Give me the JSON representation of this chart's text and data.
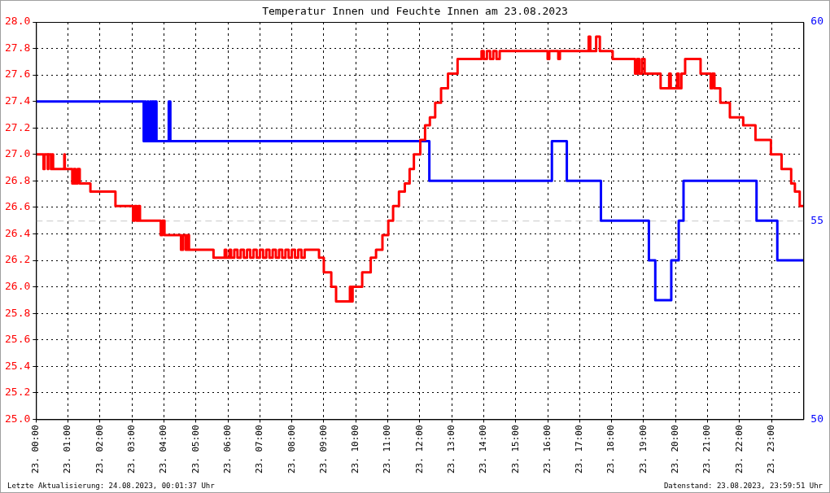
{
  "chart_data": {
    "type": "step",
    "title": "Temperatur Innen und Feuchte Innen am 23.08.2023",
    "annotations": [
      "Letzte Aktualisierung: 24.08.2023, 00:01:37 Uhr",
      "Datenstand: 23.08.2023, 23:59:51 Uhr"
    ],
    "xlim": [
      "2023-08-23T00:00",
      "2023-08-24T00:00"
    ],
    "xticks": [
      {
        "value": "2023-08-23T00:00",
        "label": "23. 00:00"
      },
      {
        "value": "2023-08-23T01:00",
        "label": "23. 01:00"
      },
      {
        "value": "2023-08-23T02:00",
        "label": "23. 02:00"
      },
      {
        "value": "2023-08-23T03:00",
        "label": "23. 03:00"
      },
      {
        "value": "2023-08-23T04:00",
        "label": "23. 04:00"
      },
      {
        "value": "2023-08-23T05:00",
        "label": "23. 05:00"
      },
      {
        "value": "2023-08-23T06:00",
        "label": "23. 06:00"
      },
      {
        "value": "2023-08-23T07:00",
        "label": "23. 07:00"
      },
      {
        "value": "2023-08-23T08:00",
        "label": "23. 08:00"
      },
      {
        "value": "2023-08-23T09:00",
        "label": "23. 09:00"
      },
      {
        "value": "2023-08-23T10:00",
        "label": "23. 10:00"
      },
      {
        "value": "2023-08-23T11:00",
        "label": "23. 11:00"
      },
      {
        "value": "2023-08-23T12:00",
        "label": "23. 12:00"
      },
      {
        "value": "2023-08-23T13:00",
        "label": "23. 13:00"
      },
      {
        "value": "2023-08-23T14:00",
        "label": "23. 14:00"
      },
      {
        "value": "2023-08-23T15:00",
        "label": "23. 15:00"
      },
      {
        "value": "2023-08-23T16:00",
        "label": "23. 16:00"
      },
      {
        "value": "2023-08-23T17:00",
        "label": "23. 17:00"
      },
      {
        "value": "2023-08-23T18:00",
        "label": "23. 18:00"
      },
      {
        "value": "2023-08-23T19:00",
        "label": "23. 19:00"
      },
      {
        "value": "2023-08-23T20:00",
        "label": "23. 20:00"
      },
      {
        "value": "2023-08-23T21:00",
        "label": "23. 21:00"
      },
      {
        "value": "2023-08-23T22:00",
        "label": "23. 22:00"
      },
      {
        "value": "2023-08-23T23:00",
        "label": "23. 23:00"
      }
    ],
    "ylim": [
      25,
      28
    ],
    "yticks": [
      {
        "value": 25,
        "label": "25.0"
      },
      {
        "value": 25.2,
        "label": "25.2"
      },
      {
        "value": 25.4,
        "label": "25.4"
      },
      {
        "value": 25.6,
        "label": "25.6"
      },
      {
        "value": 25.8,
        "label": "25.8"
      },
      {
        "value": 26,
        "label": "26.0"
      },
      {
        "value": 26.2,
        "label": "26.2"
      },
      {
        "value": 26.4,
        "label": "26.4"
      },
      {
        "value": 26.6,
        "label": "26.6"
      },
      {
        "value": 26.8,
        "label": "26.8"
      },
      {
        "value": 27,
        "label": "27.0"
      },
      {
        "value": 27.2,
        "label": "27.2"
      },
      {
        "value": 27.4,
        "label": "27.4"
      },
      {
        "value": 27.6,
        "label": "27.6"
      },
      {
        "value": 27.8,
        "label": "27.8"
      },
      {
        "value": 28,
        "label": "28.0"
      }
    ],
    "y2lim": [
      50,
      60
    ],
    "y2ticks": [
      50,
      55,
      60
    ],
    "ref_lines": [
      {
        "axis": "y2",
        "value": 55,
        "color": "#c8c8c8",
        "line_style": "dashed"
      }
    ],
    "grid": true,
    "legend": false,
    "marker": "none",
    "line_style": "solid",
    "series": [
      {
        "color": "#ff0000",
        "x": [
          "2023-08-23T00:00",
          "2023-08-23T00:14",
          "2023-08-23T00:16",
          "2023-08-23T00:22",
          "2023-08-23T00:23",
          "2023-08-23T00:28",
          "2023-08-23T00:30",
          "2023-08-23T00:32",
          "2023-08-23T00:53",
          "2023-08-23T00:54",
          "2023-08-23T01:08",
          "2023-08-23T01:11",
          "2023-08-23T01:14",
          "2023-08-23T01:18",
          "2023-08-23T01:22",
          "2023-08-23T01:42",
          "2023-08-23T02:29",
          "2023-08-23T03:02",
          "2023-08-23T03:05",
          "2023-08-23T03:09",
          "2023-08-23T03:12",
          "2023-08-23T03:15",
          "2023-08-23T03:54",
          "2023-08-23T03:57",
          "2023-08-23T04:01",
          "2023-08-23T04:32",
          "2023-08-23T04:36",
          "2023-08-23T04:41",
          "2023-08-23T04:44",
          "2023-08-23T04:47",
          "2023-08-23T05:33",
          "2023-08-23T05:54",
          "2023-08-23T05:57",
          "2023-08-23T06:03",
          "2023-08-23T06:06",
          "2023-08-23T06:12",
          "2023-08-23T06:18",
          "2023-08-23T06:24",
          "2023-08-23T06:30",
          "2023-08-23T06:36",
          "2023-08-23T06:42",
          "2023-08-23T06:48",
          "2023-08-23T06:54",
          "2023-08-23T07:00",
          "2023-08-23T07:06",
          "2023-08-23T07:12",
          "2023-08-23T07:18",
          "2023-08-23T07:24",
          "2023-08-23T07:30",
          "2023-08-23T07:36",
          "2023-08-23T07:42",
          "2023-08-23T07:48",
          "2023-08-23T07:54",
          "2023-08-23T08:00",
          "2023-08-23T08:06",
          "2023-08-23T08:12",
          "2023-08-23T08:18",
          "2023-08-23T08:24",
          "2023-08-23T08:51",
          "2023-08-23T09:00",
          "2023-08-23T09:14",
          "2023-08-23T09:23",
          "2023-08-23T09:49",
          "2023-08-23T09:52",
          "2023-08-23T09:54",
          "2023-08-23T10:12",
          "2023-08-23T10:28",
          "2023-08-23T10:38",
          "2023-08-23T10:50",
          "2023-08-23T11:01",
          "2023-08-23T11:10",
          "2023-08-23T11:21",
          "2023-08-23T11:32",
          "2023-08-23T11:41",
          "2023-08-23T11:49",
          "2023-08-23T12:01",
          "2023-08-23T12:10",
          "2023-08-23T12:19",
          "2023-08-23T12:29",
          "2023-08-23T12:40",
          "2023-08-23T12:53",
          "2023-08-23T13:11",
          "2023-08-23T13:56",
          "2023-08-23T14:00",
          "2023-08-23T14:06",
          "2023-08-23T14:12",
          "2023-08-23T14:18",
          "2023-08-23T14:24",
          "2023-08-23T14:30",
          "2023-08-23T16:00",
          "2023-08-23T16:03",
          "2023-08-23T16:20",
          "2023-08-23T16:23",
          "2023-08-23T17:17",
          "2023-08-23T17:20",
          "2023-08-23T17:31",
          "2023-08-23T17:38",
          "2023-08-23T18:02",
          "2023-08-23T18:44",
          "2023-08-23T18:48",
          "2023-08-23T18:52",
          "2023-08-23T18:57",
          "2023-08-23T19:02",
          "2023-08-23T19:32",
          "2023-08-23T19:48",
          "2023-08-23T19:51",
          "2023-08-23T20:03",
          "2023-08-23T20:06",
          "2023-08-23T20:11",
          "2023-08-23T20:18",
          "2023-08-23T20:47",
          "2023-08-23T21:06",
          "2023-08-23T21:09",
          "2023-08-23T21:13",
          "2023-08-23T21:24",
          "2023-08-23T21:42",
          "2023-08-23T22:07",
          "2023-08-23T22:30",
          "2023-08-23T22:59",
          "2023-08-23T23:19",
          "2023-08-23T23:37",
          "2023-08-23T23:44",
          "2023-08-23T23:53",
          "2023-08-24T00:00"
        ],
        "values": [
          27.0,
          26.89,
          27.0,
          26.89,
          27.0,
          26.89,
          27.0,
          26.89,
          27.0,
          26.89,
          26.78,
          26.89,
          26.78,
          26.89,
          26.78,
          26.72,
          26.61,
          26.5,
          26.61,
          26.5,
          26.61,
          26.5,
          26.39,
          26.5,
          26.39,
          26.28,
          26.39,
          26.28,
          26.39,
          26.28,
          26.22,
          26.28,
          26.22,
          26.28,
          26.22,
          26.28,
          26.22,
          26.28,
          26.22,
          26.28,
          26.22,
          26.28,
          26.22,
          26.28,
          26.22,
          26.28,
          26.22,
          26.28,
          26.22,
          26.28,
          26.22,
          26.28,
          26.22,
          26.28,
          26.22,
          26.28,
          26.22,
          26.28,
          26.22,
          26.11,
          26.0,
          25.89,
          26.0,
          25.89,
          26.0,
          26.11,
          26.22,
          26.28,
          26.39,
          26.5,
          26.61,
          26.72,
          26.78,
          26.89,
          27.0,
          27.11,
          27.22,
          27.28,
          27.39,
          27.5,
          27.61,
          27.72,
          27.78,
          27.72,
          27.78,
          27.72,
          27.78,
          27.72,
          27.78,
          27.72,
          27.78,
          27.72,
          27.78,
          27.89,
          27.78,
          27.89,
          27.78,
          27.72,
          27.61,
          27.72,
          27.61,
          27.72,
          27.61,
          27.5,
          27.61,
          27.5,
          27.61,
          27.5,
          27.61,
          27.72,
          27.61,
          27.5,
          27.61,
          27.5,
          27.39,
          27.28,
          27.22,
          27.11,
          27.0,
          26.89,
          26.78,
          26.72,
          26.61,
          26.61
        ]
      },
      {
        "color": "#0000ff",
        "axis": "y2",
        "x": [
          "2023-08-23T00:00",
          "2023-08-23T03:22",
          "2023-08-23T03:24",
          "2023-08-23T03:26",
          "2023-08-23T03:29",
          "2023-08-23T03:31",
          "2023-08-23T03:34",
          "2023-08-23T03:36",
          "2023-08-23T03:38",
          "2023-08-23T03:41",
          "2023-08-23T03:43",
          "2023-08-23T03:46",
          "2023-08-23T04:09",
          "2023-08-23T04:12",
          "2023-08-23T12:18",
          "2023-08-23T16:08",
          "2023-08-23T16:36",
          "2023-08-23T17:40",
          "2023-08-23T19:10",
          "2023-08-23T19:22",
          "2023-08-23T19:52",
          "2023-08-23T20:06",
          "2023-08-23T20:15",
          "2023-08-23T22:32",
          "2023-08-23T23:11",
          "2023-08-24T00:00"
        ],
        "values": [
          58,
          57,
          58,
          57,
          58,
          57,
          58,
          57,
          58,
          57,
          58,
          57,
          58,
          57,
          56,
          57,
          56,
          55,
          54,
          53,
          54,
          55,
          56,
          55,
          54,
          54
        ]
      }
    ]
  }
}
